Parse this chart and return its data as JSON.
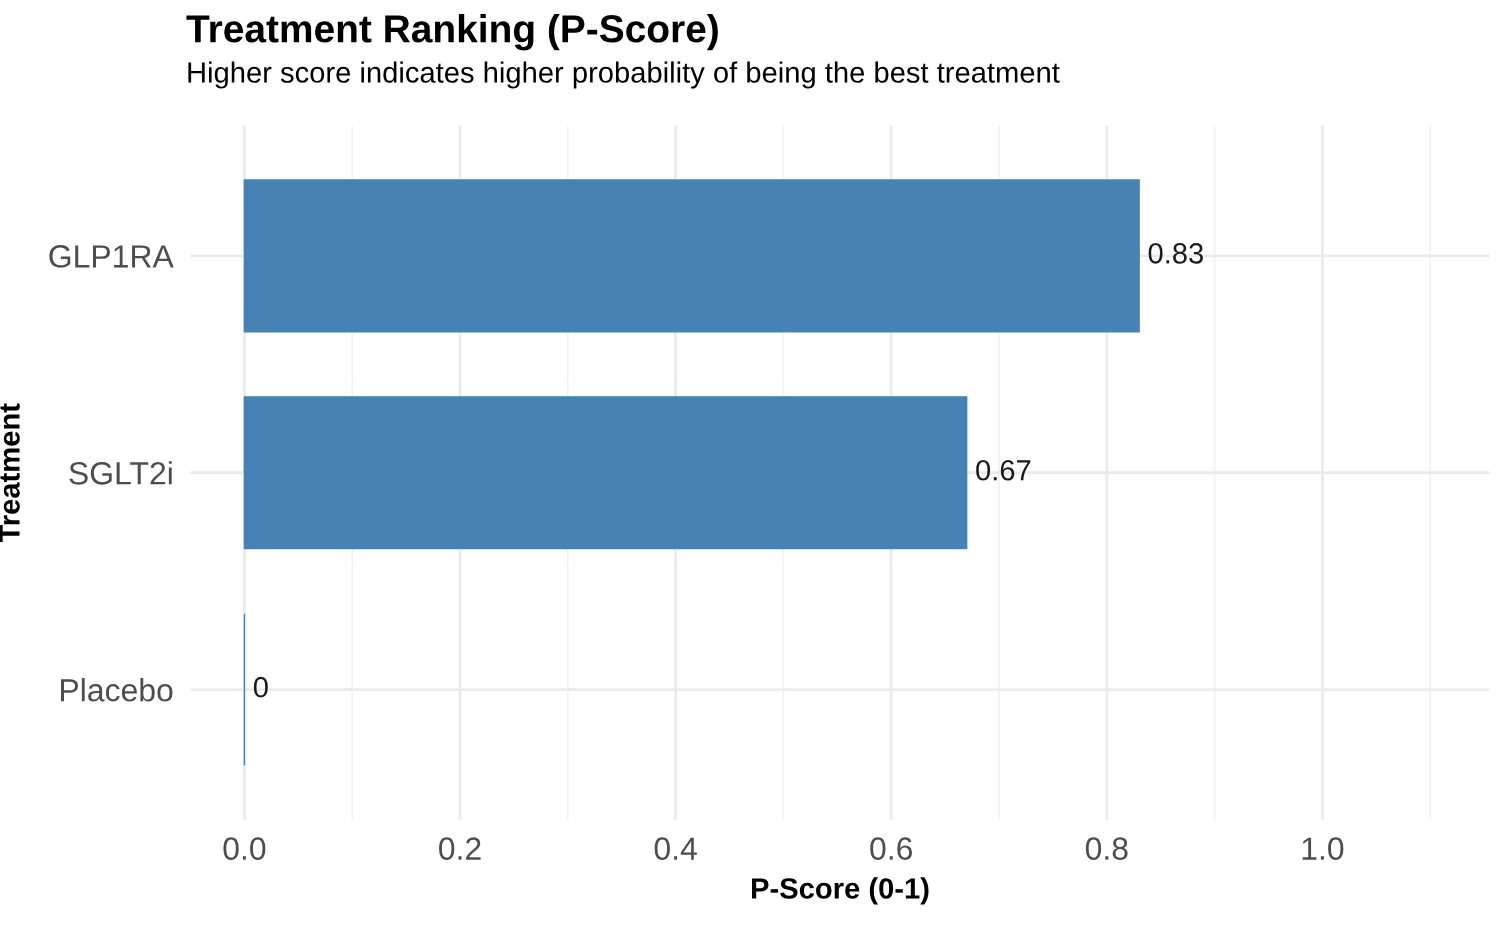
{
  "chart_data": {
    "type": "bar",
    "orientation": "horizontal",
    "title": "Treatment Ranking (P-Score)",
    "subtitle": "Higher score indicates higher probability of being the best treatment",
    "xlabel": "P-Score (0-1)",
    "ylabel": "Treatment",
    "categories": [
      "GLP1RA",
      "SGLT2i",
      "Placebo"
    ],
    "values": [
      0.83,
      0.67,
      0
    ],
    "color": "#4682b4",
    "data_labels": true,
    "xlim": [
      -0.05,
      1.155
    ],
    "xticks": [
      {
        "value": 0,
        "label": "0.0"
      },
      {
        "value": 0.2,
        "label": "0.2"
      },
      {
        "value": 0.4,
        "label": "0.4"
      },
      {
        "value": 0.6,
        "label": "0.6"
      },
      {
        "value": 0.8,
        "label": "0.8"
      },
      {
        "value": 1.0,
        "label": "1.0"
      }
    ],
    "grid": true,
    "legend": false
  }
}
